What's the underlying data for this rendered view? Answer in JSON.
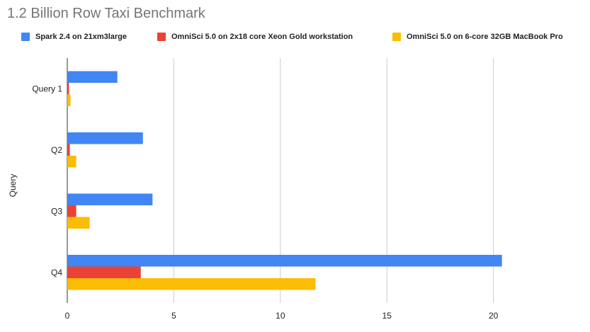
{
  "chart_data": {
    "type": "bar",
    "orientation": "horizontal",
    "title": "1.2 Billion Row Taxi Benchmark",
    "xlabel": "",
    "ylabel": "Query",
    "categories": [
      "Query 1",
      "Q2",
      "Q3",
      "Q4"
    ],
    "xlim": [
      0,
      24.3
    ],
    "xticks": [
      0,
      5,
      10,
      15,
      20
    ],
    "grid": true,
    "legend_position": "top",
    "series": [
      {
        "name": "Spark 2.4 on  21xm3large",
        "color": "#4285f4",
        "values": [
          2.35,
          3.55,
          4.0,
          20.4
        ]
      },
      {
        "name": "OmniSci 5.0 on 2x18 core Xeon Gold workstation",
        "color": "#ea4335",
        "values": [
          0.08,
          0.12,
          0.42,
          3.45
        ]
      },
      {
        "name": "OmniSci 5.0 on 6-core 32GB MacBook Pro",
        "color": "#fbbc04",
        "values": [
          0.15,
          0.42,
          1.05,
          11.65
        ]
      }
    ]
  }
}
